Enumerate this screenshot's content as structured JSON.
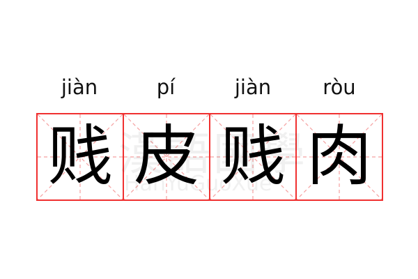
{
  "entries": [
    {
      "pinyin": "jiàn",
      "char": "贱"
    },
    {
      "pinyin": "pí",
      "char": "皮"
    },
    {
      "pinyin": "jiàn",
      "char": "贱"
    },
    {
      "pinyin": "ròu",
      "char": "肉"
    }
  ],
  "watermark": {
    "chinese": "漢語國學",
    "latin": "HanYuGuoXue"
  },
  "colors": {
    "grid_border": "#f03030",
    "guide_lines": "#f5a0a0"
  }
}
